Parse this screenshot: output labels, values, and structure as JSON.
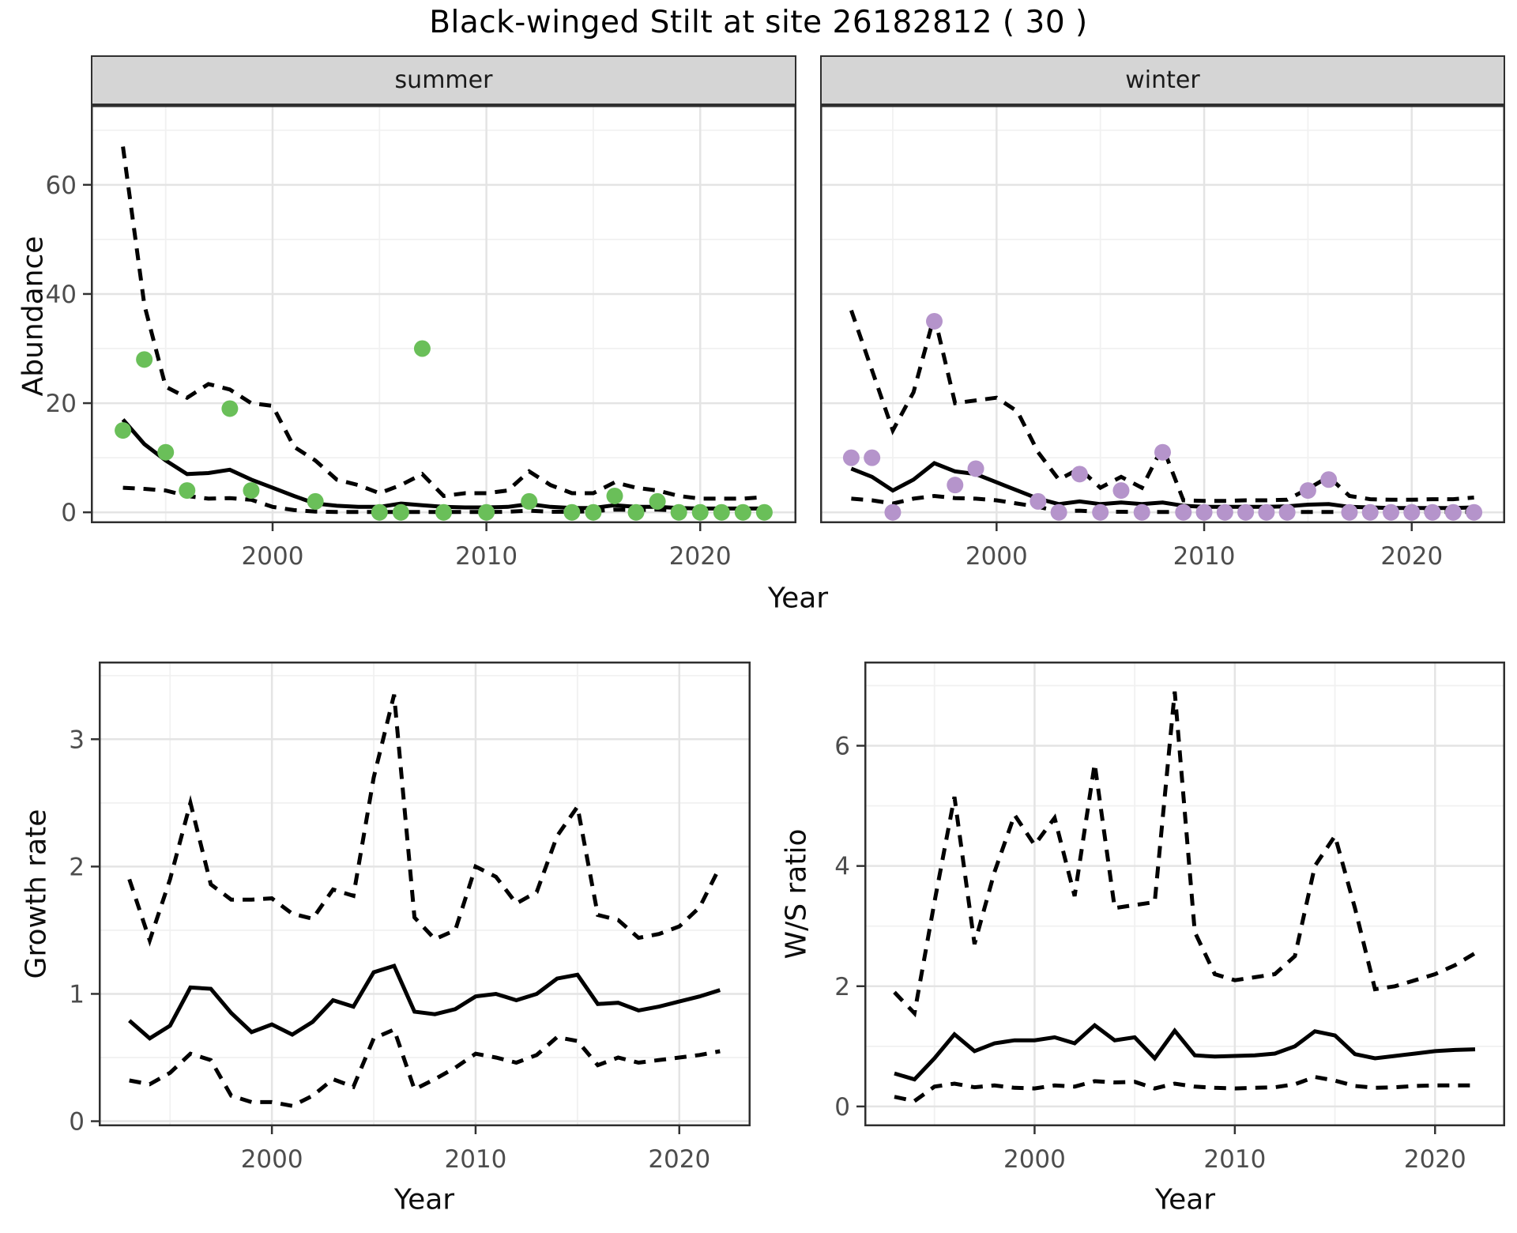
{
  "title": "Black-winged Stilt at site 26182812 ( 30 )",
  "labels": {
    "year": "Year",
    "abundance": "Abundance",
    "growth_rate": "Growth rate",
    "ws_ratio": "W/S ratio"
  },
  "colors": {
    "summer_point": "#6abf59",
    "winter_point": "#b594cb",
    "median_line": "#000000",
    "ci_line": "#000000",
    "strip_bg": "#d5d5d5",
    "panel_border": "#2f2f2f",
    "grid_major": "#e4e4e4",
    "grid_minor": "#f1f1f1",
    "tick_text": "#4d4d4d"
  },
  "chart_data": [
    {
      "id": "summer-abundance",
      "type": "line",
      "facet_label": "summer",
      "xlabel": "Year",
      "ylabel": "Abundance",
      "xlim": [
        1991.5,
        2024.5
      ],
      "ylim": [
        -2,
        74.6
      ],
      "x_ticks": [
        2000,
        2010,
        2020
      ],
      "y_ticks": [
        0,
        20,
        40,
        60
      ],
      "x_minor": [
        1995,
        2005,
        2015
      ],
      "y_minor": [
        10,
        30,
        50,
        70
      ],
      "show_y_tick_labels": true,
      "x": [
        1993,
        1994,
        1995,
        1996,
        1997,
        1998,
        1999,
        2000,
        2001,
        2002,
        2003,
        2004,
        2005,
        2006,
        2007,
        2008,
        2009,
        2010,
        2011,
        2012,
        2013,
        2014,
        2015,
        2016,
        2017,
        2018,
        2019,
        2020,
        2021,
        2022,
        2023
      ],
      "series": [
        {
          "name": "median",
          "style": "solid",
          "values": [
            17,
            12.5,
            9.5,
            7,
            7.2,
            7.8,
            6,
            4.5,
            3,
            1.6,
            1.2,
            1,
            1,
            1.6,
            1.3,
            1,
            0.9,
            0.9,
            1,
            1.5,
            1,
            0.8,
            0.8,
            1.3,
            1,
            1,
            0.8,
            0.7,
            0.7,
            0.7,
            0.7
          ]
        },
        {
          "name": "ci-upper-97.5",
          "style": "dashed",
          "values": [
            67,
            38,
            23,
            21,
            23.5,
            22.5,
            20,
            19.5,
            12,
            9.5,
            6,
            5,
            3.5,
            5,
            7,
            3,
            3.5,
            3.5,
            4,
            7.5,
            5,
            3.5,
            3.5,
            5.5,
            4.5,
            4,
            3,
            2.5,
            2.5,
            2.5,
            2.8
          ]
        },
        {
          "name": "ci-lower-2.5",
          "style": "dashed",
          "values": [
            4.5,
            4.3,
            4,
            3,
            2.5,
            2.6,
            2.3,
            1,
            0.4,
            0.15,
            0.05,
            0.05,
            0.05,
            0.05,
            0.05,
            0.05,
            0.05,
            0.05,
            0.1,
            0.3,
            0.1,
            0.1,
            0.2,
            0.5,
            0.4,
            0.5,
            0.3,
            0.3,
            0.35,
            0.4,
            0.4
          ]
        }
      ],
      "points": [
        [
          1993,
          15
        ],
        [
          1994,
          28
        ],
        [
          1995,
          11
        ],
        [
          1996,
          4
        ],
        [
          1998,
          19
        ],
        [
          1999,
          4
        ],
        [
          2002,
          2
        ],
        [
          2005,
          0
        ],
        [
          2006,
          0
        ],
        [
          2007,
          30
        ],
        [
          2008,
          0
        ],
        [
          2010,
          0
        ],
        [
          2012,
          2
        ],
        [
          2014,
          0
        ],
        [
          2015,
          0
        ],
        [
          2016,
          3
        ],
        [
          2017,
          0
        ],
        [
          2018,
          2
        ],
        [
          2019,
          0
        ],
        [
          2020,
          0
        ],
        [
          2021,
          0
        ],
        [
          2022,
          0
        ],
        [
          2023,
          0
        ]
      ],
      "point_color": "#6abf59"
    },
    {
      "id": "winter-abundance",
      "type": "line",
      "facet_label": "winter",
      "xlabel": "Year",
      "ylabel": "Abundance",
      "xlim": [
        1991.5,
        2024.5
      ],
      "ylim": [
        -2,
        74.6
      ],
      "x_ticks": [
        2000,
        2010,
        2020
      ],
      "y_ticks": [
        0,
        20,
        40,
        60
      ],
      "x_minor": [
        1995,
        2005,
        2015
      ],
      "y_minor": [
        10,
        30,
        50,
        70
      ],
      "show_y_tick_labels": false,
      "x": [
        1993,
        1994,
        1995,
        1996,
        1997,
        1998,
        1999,
        2000,
        2001,
        2002,
        2003,
        2004,
        2005,
        2006,
        2007,
        2008,
        2009,
        2010,
        2011,
        2012,
        2013,
        2014,
        2015,
        2016,
        2017,
        2018,
        2019,
        2020,
        2021,
        2022,
        2023
      ],
      "series": [
        {
          "name": "median",
          "style": "solid",
          "values": [
            8,
            6.5,
            4,
            6,
            9,
            7.5,
            7,
            5.5,
            4,
            2.5,
            1.5,
            2,
            1.5,
            1.8,
            1.5,
            1.8,
            1.2,
            1,
            1,
            1,
            1,
            1.1,
            1.4,
            1.5,
            1,
            0.9,
            0.8,
            0.8,
            0.8,
            0.8,
            0.9
          ]
        },
        {
          "name": "ci-upper-97.5",
          "style": "dashed",
          "values": [
            37,
            26,
            15,
            22,
            36,
            20,
            20.5,
            21,
            18.5,
            11,
            6,
            8,
            4.5,
            6.5,
            4.5,
            12,
            2.2,
            2.1,
            2.1,
            2.2,
            2.2,
            2.3,
            4.3,
            6.5,
            3,
            2.4,
            2.3,
            2.3,
            2.4,
            2.4,
            2.7
          ]
        },
        {
          "name": "ci-lower-2.5",
          "style": "dashed",
          "values": [
            2.5,
            2.2,
            1.6,
            2.5,
            3,
            2.6,
            2.5,
            2.2,
            1.6,
            1,
            0.2,
            0.3,
            0.1,
            0.1,
            0.05,
            0.05,
            0.05,
            0.05,
            0.05,
            0.05,
            0.05,
            0.05,
            0.05,
            0.05,
            0.05,
            0.05,
            0.05,
            0.05,
            0.05,
            0.05,
            0.05
          ]
        }
      ],
      "points": [
        [
          1993,
          10
        ],
        [
          1994,
          10
        ],
        [
          1995,
          0
        ],
        [
          1997,
          35
        ],
        [
          1998,
          5
        ],
        [
          1999,
          8
        ],
        [
          2002,
          2
        ],
        [
          2003,
          0
        ],
        [
          2004,
          7
        ],
        [
          2005,
          0
        ],
        [
          2006,
          4
        ],
        [
          2007,
          0
        ],
        [
          2008,
          11
        ],
        [
          2009,
          0
        ],
        [
          2010,
          0
        ],
        [
          2011,
          0
        ],
        [
          2012,
          0
        ],
        [
          2013,
          0
        ],
        [
          2014,
          0
        ],
        [
          2015,
          4
        ],
        [
          2016,
          6
        ],
        [
          2017,
          0
        ],
        [
          2018,
          0
        ],
        [
          2019,
          0
        ],
        [
          2020,
          0
        ],
        [
          2021,
          0
        ],
        [
          2022,
          0
        ],
        [
          2023,
          0
        ]
      ],
      "point_color": "#b594cb"
    },
    {
      "id": "growth-rate",
      "type": "line",
      "facet_label": "",
      "xlabel": "Year",
      "ylabel": "Growth rate",
      "xlim": [
        1991.5,
        2023.5
      ],
      "ylim": [
        -0.04,
        3.61
      ],
      "x_ticks": [
        2000,
        2010,
        2020
      ],
      "y_ticks": [
        0,
        1,
        2,
        3
      ],
      "x_minor": [
        1995,
        2005,
        2015
      ],
      "y_minor": [
        0.5,
        1.5,
        2.5,
        3.5
      ],
      "show_y_tick_labels": true,
      "x": [
        1993,
        1994,
        1995,
        1996,
        1997,
        1998,
        1999,
        2000,
        2001,
        2002,
        2003,
        2004,
        2005,
        2006,
        2007,
        2008,
        2009,
        2010,
        2011,
        2012,
        2013,
        2014,
        2015,
        2016,
        2017,
        2018,
        2019,
        2020,
        2021,
        2022
      ],
      "series": [
        {
          "name": "median",
          "style": "solid",
          "values": [
            0.79,
            0.65,
            0.75,
            1.05,
            1.04,
            0.85,
            0.7,
            0.76,
            0.68,
            0.78,
            0.95,
            0.9,
            1.17,
            1.22,
            0.86,
            0.84,
            0.88,
            0.98,
            1.0,
            0.95,
            1.0,
            1.12,
            1.15,
            0.92,
            0.93,
            0.87,
            0.9,
            0.94,
            0.98,
            1.03
          ]
        },
        {
          "name": "ci-upper-97.5",
          "style": "dashed",
          "values": [
            1.9,
            1.42,
            1.9,
            2.5,
            1.86,
            1.74,
            1.74,
            1.75,
            1.63,
            1.59,
            1.82,
            1.77,
            2.7,
            3.35,
            1.6,
            1.43,
            1.5,
            2.0,
            1.92,
            1.71,
            1.8,
            2.24,
            2.47,
            1.62,
            1.58,
            1.44,
            1.47,
            1.53,
            1.68,
            2.0
          ]
        },
        {
          "name": "ci-lower-2.5",
          "style": "dashed",
          "values": [
            0.32,
            0.29,
            0.38,
            0.53,
            0.48,
            0.2,
            0.15,
            0.15,
            0.12,
            0.2,
            0.33,
            0.27,
            0.65,
            0.72,
            0.25,
            0.33,
            0.42,
            0.53,
            0.5,
            0.46,
            0.52,
            0.66,
            0.63,
            0.44,
            0.5,
            0.46,
            0.48,
            0.5,
            0.52,
            0.55
          ]
        }
      ],
      "points": [],
      "point_color": null
    },
    {
      "id": "ws-ratio",
      "type": "line",
      "facet_label": "",
      "xlabel": "Year",
      "ylabel": "W/S ratio",
      "xlim": [
        1991.5,
        2023.5
      ],
      "ylim": [
        -0.33,
        7.4
      ],
      "x_ticks": [
        2000,
        2010,
        2020
      ],
      "y_ticks": [
        0,
        2,
        4,
        6
      ],
      "x_minor": [
        1995,
        2005,
        2015
      ],
      "y_minor": [
        1,
        3,
        5,
        7
      ],
      "show_y_tick_labels": true,
      "x": [
        1993,
        1994,
        1995,
        1996,
        1997,
        1998,
        1999,
        2000,
        2001,
        2002,
        2003,
        2004,
        2005,
        2006,
        2007,
        2008,
        2009,
        2010,
        2011,
        2012,
        2013,
        2014,
        2015,
        2016,
        2017,
        2018,
        2019,
        2020,
        2021,
        2022
      ],
      "series": [
        {
          "name": "median",
          "style": "solid",
          "values": [
            0.55,
            0.45,
            0.8,
            1.2,
            0.92,
            1.05,
            1.1,
            1.1,
            1.15,
            1.05,
            1.35,
            1.1,
            1.15,
            0.8,
            1.26,
            0.85,
            0.83,
            0.84,
            0.85,
            0.88,
            1.0,
            1.25,
            1.18,
            0.87,
            0.8,
            0.84,
            0.88,
            0.92,
            0.94,
            0.95
          ]
        },
        {
          "name": "ci-upper-97.5",
          "style": "dashed",
          "values": [
            1.9,
            1.55,
            3.4,
            5.15,
            2.7,
            3.9,
            4.85,
            4.35,
            4.8,
            3.5,
            5.7,
            3.3,
            3.35,
            3.4,
            6.9,
            2.9,
            2.2,
            2.1,
            2.15,
            2.2,
            2.5,
            4.0,
            4.5,
            3.3,
            1.95,
            2.0,
            2.1,
            2.2,
            2.35,
            2.55
          ]
        },
        {
          "name": "ci-lower-2.5",
          "style": "dashed",
          "values": [
            0.16,
            0.09,
            0.33,
            0.38,
            0.32,
            0.35,
            0.31,
            0.3,
            0.35,
            0.33,
            0.42,
            0.4,
            0.41,
            0.3,
            0.38,
            0.33,
            0.31,
            0.3,
            0.31,
            0.32,
            0.37,
            0.49,
            0.43,
            0.34,
            0.31,
            0.32,
            0.34,
            0.35,
            0.35,
            0.35
          ]
        }
      ],
      "points": [],
      "point_color": null
    }
  ]
}
